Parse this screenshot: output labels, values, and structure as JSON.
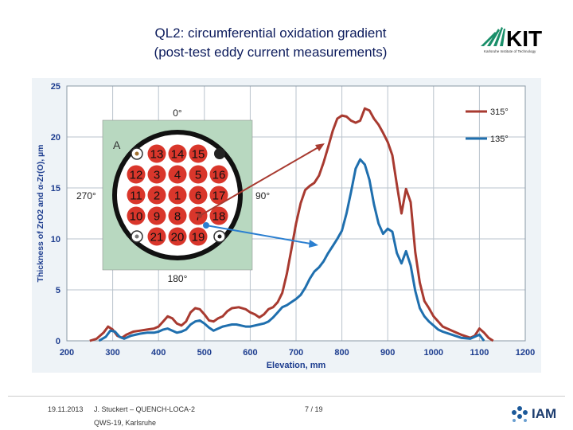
{
  "slide": {
    "title_line1": "QL2: circumferential oxidation gradient",
    "title_line2": "(post-test eddy current measurements)",
    "logo_text": "KIT",
    "logo_subtitle": "Karlsruhe Institute of Technology",
    "footer": {
      "date": "19.11.2013",
      "author": "J. Stuckert – QUENCH-LOCA-2",
      "event": "QWS-19, Karlsruhe",
      "page": "7 / 19"
    },
    "iam_logo_text": "IAM",
    "colors": {
      "title": "#0c1b5c",
      "series_315": "#a83a30",
      "series_135": "#1f6fae",
      "bundle_rod": "#d9362b",
      "bundle_bg": "#b8d8c0"
    }
  },
  "bundle": {
    "angle_top": "0°",
    "angle_right": "90°",
    "angle_bottom": "180°",
    "angle_left": "270°",
    "corner_label": "A",
    "rods": [
      "13",
      "14",
      "15",
      "12",
      "3",
      "4",
      "5",
      "16",
      "11",
      "2",
      "1",
      "6",
      "17",
      "10",
      "9",
      "8",
      "7",
      "18",
      "21",
      "20",
      "19"
    ]
  },
  "chart_data": {
    "type": "line",
    "xlabel": "Elevation, mm",
    "ylabel": "Thickness of ZrO2 and α-Zr(O), µm",
    "xlim": [
      200,
      1200
    ],
    "ylim": [
      0,
      25
    ],
    "xticks": [
      200,
      300,
      400,
      500,
      600,
      700,
      800,
      900,
      1000,
      1100,
      1200
    ],
    "yticks": [
      0,
      5,
      10,
      15,
      20,
      25
    ],
    "grid": true,
    "legend_position": "top-right",
    "series": [
      {
        "name": "315°",
        "color": "#a83a30",
        "x": [
          250,
          265,
          280,
          290,
          300,
          310,
          320,
          330,
          345,
          360,
          375,
          390,
          400,
          410,
          420,
          430,
          440,
          450,
          460,
          470,
          480,
          490,
          500,
          510,
          520,
          530,
          540,
          550,
          560,
          575,
          590,
          600,
          610,
          620,
          630,
          640,
          650,
          660,
          670,
          680,
          690,
          700,
          710,
          720,
          730,
          740,
          750,
          760,
          770,
          780,
          790,
          800,
          810,
          820,
          830,
          840,
          850,
          860,
          870,
          880,
          890,
          900,
          910,
          920,
          930,
          940,
          950,
          960,
          970,
          980,
          990,
          1000,
          1010,
          1020,
          1040,
          1060,
          1080,
          1090,
          1100,
          1110,
          1120,
          1130
        ],
        "y": [
          0,
          0.2,
          0.8,
          1.4,
          1.1,
          0.5,
          0.3,
          0.6,
          0.9,
          1.0,
          1.1,
          1.2,
          1.4,
          1.9,
          2.4,
          2.2,
          1.7,
          1.5,
          1.9,
          2.8,
          3.2,
          3.1,
          2.6,
          2.0,
          1.9,
          2.2,
          2.4,
          2.9,
          3.2,
          3.3,
          3.1,
          2.8,
          2.6,
          2.3,
          2.6,
          3.1,
          3.3,
          3.8,
          4.7,
          6.6,
          9.0,
          11.5,
          13.5,
          14.8,
          15.2,
          15.5,
          16.2,
          17.5,
          19.0,
          20.6,
          21.8,
          22.1,
          22.0,
          21.6,
          21.4,
          21.6,
          22.8,
          22.6,
          21.8,
          21.2,
          20.4,
          19.5,
          18.2,
          15.3,
          12.5,
          14.9,
          13.6,
          8.7,
          5.7,
          3.9,
          3.2,
          2.4,
          1.9,
          1.4,
          1.0,
          0.6,
          0.3,
          0.5,
          1.2,
          0.8,
          0.3,
          0
        ]
      },
      {
        "name": "135°",
        "color": "#1f6fae",
        "x": [
          270,
          285,
          295,
          305,
          315,
          325,
          340,
          360,
          375,
          390,
          400,
          410,
          420,
          430,
          440,
          450,
          460,
          470,
          480,
          490,
          500,
          510,
          520,
          530,
          540,
          550,
          560,
          570,
          580,
          590,
          600,
          610,
          620,
          630,
          640,
          650,
          660,
          670,
          680,
          690,
          700,
          710,
          720,
          730,
          740,
          750,
          760,
          770,
          780,
          790,
          800,
          810,
          820,
          830,
          840,
          850,
          860,
          870,
          880,
          890,
          900,
          910,
          920,
          930,
          940,
          950,
          960,
          970,
          980,
          990,
          1000,
          1010,
          1020,
          1040,
          1060,
          1080,
          1090,
          1100,
          1110
        ],
        "y": [
          0,
          0.4,
          1.0,
          0.9,
          0.4,
          0.2,
          0.5,
          0.7,
          0.8,
          0.8,
          0.9,
          1.1,
          1.2,
          1.0,
          0.8,
          0.9,
          1.1,
          1.6,
          1.9,
          2.0,
          1.7,
          1.3,
          1.0,
          1.2,
          1.4,
          1.5,
          1.6,
          1.6,
          1.5,
          1.4,
          1.4,
          1.5,
          1.6,
          1.7,
          1.9,
          2.3,
          2.8,
          3.3,
          3.5,
          3.8,
          4.1,
          4.5,
          5.2,
          6.1,
          6.8,
          7.2,
          7.8,
          8.6,
          9.3,
          10.0,
          10.8,
          12.5,
          14.6,
          16.9,
          17.8,
          17.3,
          15.8,
          13.4,
          11.5,
          10.5,
          11.0,
          10.7,
          8.6,
          7.6,
          8.8,
          7.4,
          4.9,
          3.2,
          2.4,
          1.9,
          1.5,
          1.1,
          0.9,
          0.6,
          0.3,
          0.2,
          0.4,
          0.6,
          0
        ]
      }
    ]
  }
}
